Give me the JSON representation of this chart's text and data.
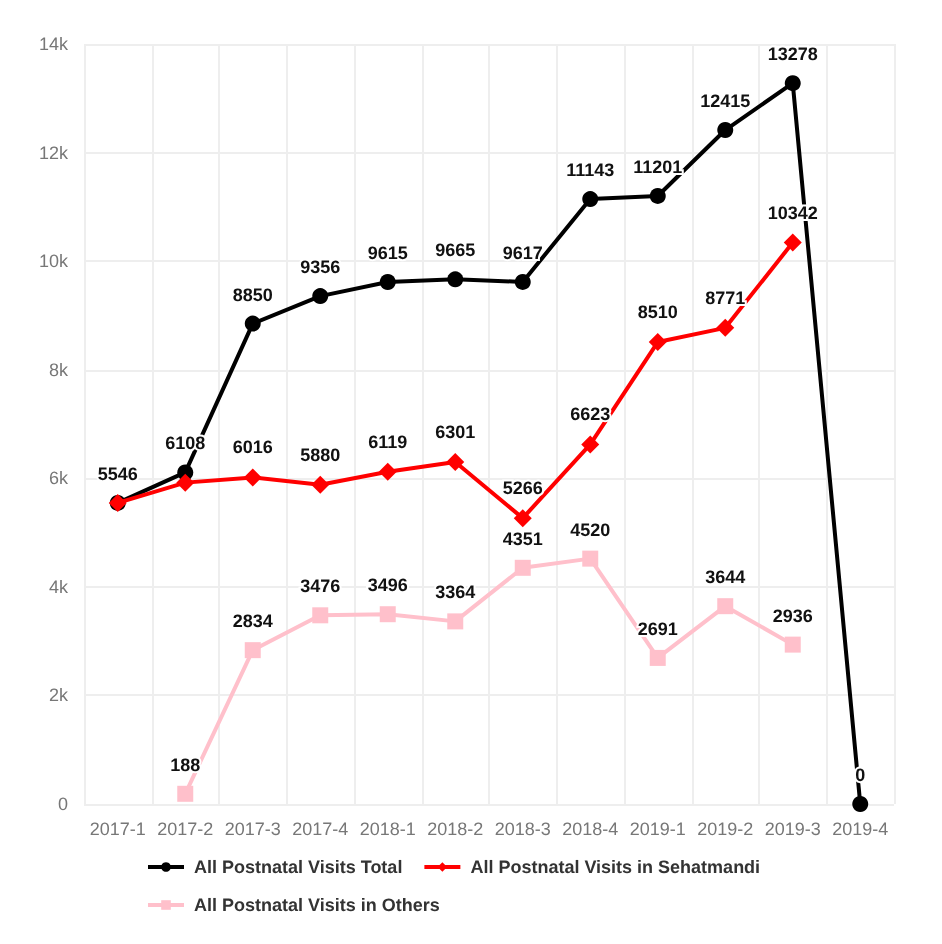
{
  "chart_data": {
    "type": "line",
    "categories": [
      "2017-1",
      "2017-2",
      "2017-3",
      "2017-4",
      "2018-1",
      "2018-2",
      "2018-3",
      "2018-4",
      "2019-1",
      "2019-2",
      "2019-3",
      "2019-4"
    ],
    "series": [
      {
        "name": "All Postnatal Visits Total",
        "color": "#000000",
        "marker": "circle",
        "values": [
          5546,
          6108,
          8850,
          9356,
          9615,
          9665,
          9617,
          11143,
          11201,
          12415,
          13278,
          0
        ],
        "value_labels": [
          "5546",
          "6108",
          "8850",
          "9356",
          "9615",
          "9665",
          "9617",
          "11143",
          "11201",
          "12415",
          "13278",
          "0"
        ]
      },
      {
        "name": "All Postnatal Visits in Sehatmandi",
        "color": "#ff0000",
        "marker": "diamond",
        "values": [
          5546,
          5920,
          6016,
          5880,
          6119,
          6301,
          5266,
          6623,
          8510,
          8771,
          10342,
          null
        ],
        "value_labels": [
          null,
          null,
          "6016",
          "5880",
          "6119",
          "6301",
          "5266",
          "6623",
          "8510",
          "8771",
          "10342",
          null
        ]
      },
      {
        "name": "All Postnatal Visits in Others",
        "color": "#ffc0cb",
        "marker": "square",
        "values": [
          null,
          188,
          2834,
          3476,
          3496,
          3364,
          4351,
          4520,
          2691,
          3644,
          2936,
          null
        ],
        "value_labels": [
          null,
          "188",
          "2834",
          "3476",
          "3496",
          "3364",
          "4351",
          "4520",
          "2691",
          "3644",
          "2936",
          null
        ]
      }
    ],
    "ylim": [
      0,
      14000
    ],
    "yticks": [
      {
        "value": 0,
        "label": "0"
      },
      {
        "value": 2000,
        "label": "2k"
      },
      {
        "value": 4000,
        "label": "4k"
      },
      {
        "value": 6000,
        "label": "6k"
      },
      {
        "value": 8000,
        "label": "8k"
      },
      {
        "value": 10000,
        "label": "10k"
      },
      {
        "value": 12000,
        "label": "12k"
      },
      {
        "value": 14000,
        "label": "14k"
      }
    ],
    "grid": true,
    "legend": "bottom"
  }
}
